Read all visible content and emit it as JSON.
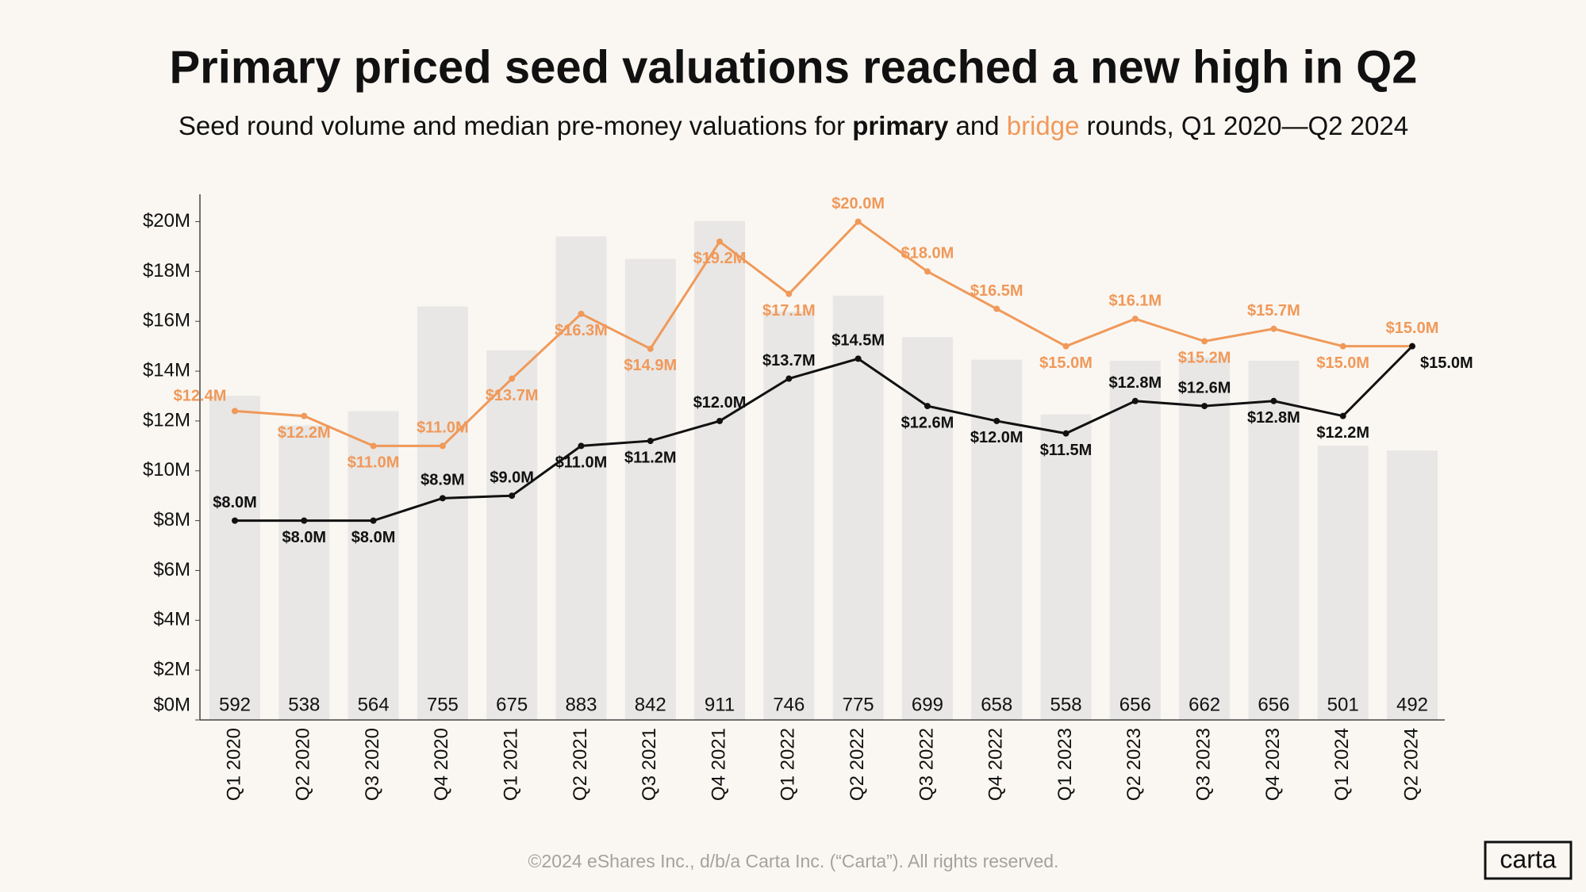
{
  "chart_data": {
    "type": "combo",
    "title": "Primary priced seed valuations reached a new high in Q2",
    "subtitle": [
      "Seed round volume and median pre-money valuations for ",
      "primary",
      " and ",
      "bridge",
      " rounds, Q1 2020—Q2 2024"
    ],
    "categories": [
      "Q1 2020",
      "Q2 2020",
      "Q3 2020",
      "Q4 2020",
      "Q1 2021",
      "Q2 2021",
      "Q3 2021",
      "Q4 2021",
      "Q1 2022",
      "Q2 2022",
      "Q3 2022",
      "Q4 2022",
      "Q1 2023",
      "Q2 2023",
      "Q3 2023",
      "Q4 2023",
      "Q1 2024",
      "Q2 2024"
    ],
    "series": [
      {
        "type": "bar",
        "axis": "y2",
        "color": "#e8e7e5",
        "values": [
          592,
          538,
          564,
          755,
          675,
          883,
          842,
          911,
          746,
          775,
          699,
          658,
          558,
          656,
          662,
          656,
          501,
          492
        ]
      },
      {
        "type": "line",
        "color": "#f0995a",
        "values": [
          12.4,
          12.2,
          11.0,
          11.0,
          13.7,
          16.3,
          14.9,
          19.2,
          17.1,
          20.0,
          18.0,
          16.5,
          15.0,
          16.1,
          15.2,
          15.7,
          15.0,
          15.0
        ],
        "value_labels": [
          "$12.4M",
          "$12.2M",
          "$11.0M",
          "$11.0M",
          "$13.7M",
          "$16.3M",
          "$14.9M",
          "$19.2M",
          "$17.1M",
          "$20.0M",
          "$18.0M",
          "$16.5M",
          "$15.0M",
          "$16.1M",
          "$15.2M",
          "$15.7M",
          "$15.0M",
          "$15.0M"
        ]
      },
      {
        "type": "line",
        "color": "#111111",
        "values": [
          8.0,
          8.0,
          8.0,
          8.9,
          9.0,
          11.0,
          11.2,
          12.0,
          13.7,
          14.5,
          12.6,
          12.0,
          11.5,
          12.8,
          12.6,
          12.8,
          12.2,
          15.0
        ],
        "value_labels": [
          "$8.0M",
          "$8.0M",
          "$8.0M",
          "$8.9M",
          "$9.0M",
          "$11.0M",
          "$11.2M",
          "$12.0M",
          "$13.7M",
          "$14.5M",
          "$12.6M",
          "$12.0M",
          "$11.5M",
          "$12.8M",
          "$12.6M",
          "$12.8M",
          "$12.2M",
          "$15.0M"
        ]
      }
    ],
    "ylim": [
      0,
      21.1
    ],
    "yticks": [
      {
        "value": 0,
        "label": "$0M"
      },
      {
        "value": 2,
        "label": "$2M"
      },
      {
        "value": 4,
        "label": "$4M"
      },
      {
        "value": 6,
        "label": "$6M"
      },
      {
        "value": 8,
        "label": "$8M"
      },
      {
        "value": 10,
        "label": "$10M"
      },
      {
        "value": 12,
        "label": "$12M"
      },
      {
        "value": 14,
        "label": "$14M"
      },
      {
        "value": 16,
        "label": "$16M"
      },
      {
        "value": 18,
        "label": "$18M"
      },
      {
        "value": 20,
        "label": "$20M"
      }
    ],
    "y2lim": [
      0,
      960
    ],
    "grid": false
  },
  "footer": "©2024 eShares Inc., d/b/a Carta Inc. (“Carta”). All rights reserved.",
  "logo": "carta"
}
